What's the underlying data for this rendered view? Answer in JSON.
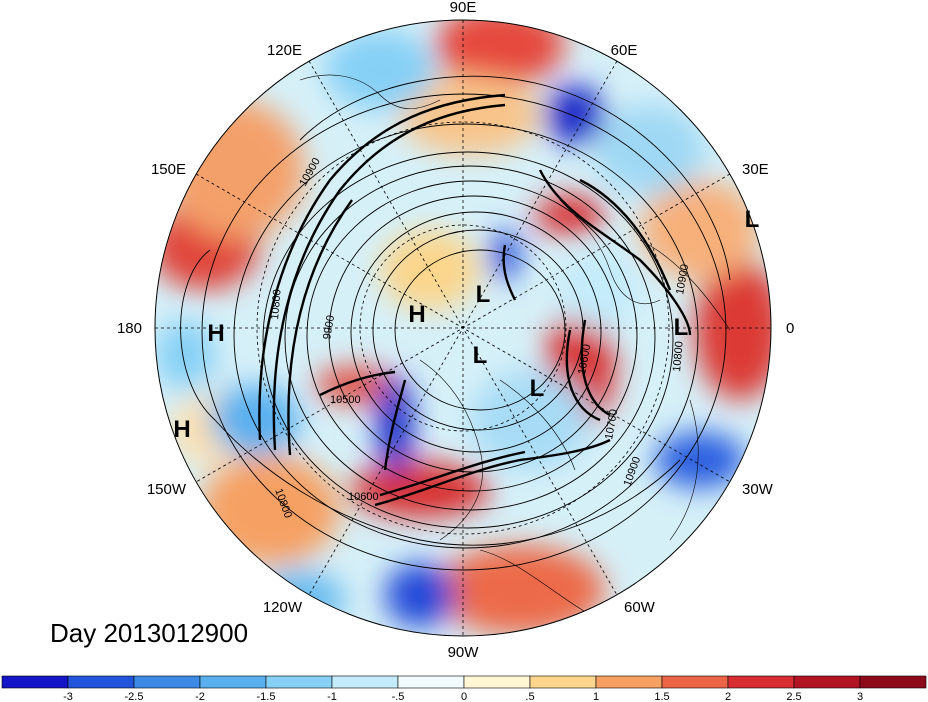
{
  "title": "Day 2013012900",
  "map": {
    "projection": "north-polar-stereographic",
    "longitude_labels": [
      "90E",
      "60E",
      "30E",
      "0",
      "30W",
      "60W",
      "90W",
      "120W",
      "150W",
      "180",
      "150E",
      "120E"
    ],
    "pressure_labels": [
      "H",
      "H",
      "H",
      "L",
      "L",
      "L",
      "L",
      "L"
    ],
    "contour_labels": [
      "10900",
      "9900",
      "10500",
      "10600",
      "10700",
      "10800",
      "10900",
      "10800",
      "10600",
      "10800",
      "10900"
    ]
  },
  "colorbar": {
    "tick_labels": [
      "-3",
      "-2.5",
      "-2",
      "-1.5",
      "-1",
      "-.5",
      "0",
      ".5",
      "1",
      "1.5",
      "2",
      "2.5",
      "3"
    ],
    "colors": [
      "#1515c8",
      "#2355dc",
      "#3d8ae6",
      "#5ab0ef",
      "#86d0f6",
      "#c4ecfb",
      "#f1fbfe",
      "#fff7d4",
      "#fbd68c",
      "#f6a064",
      "#ec6446",
      "#d82e33",
      "#b21424",
      "#8c0a1a"
    ]
  }
}
